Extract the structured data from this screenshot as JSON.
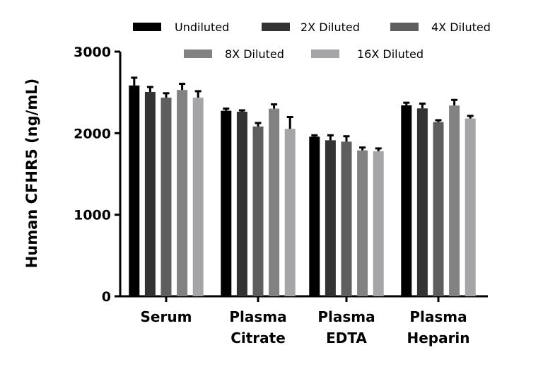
{
  "chart_data": {
    "type": "bar",
    "ylabel": "Human CFHR5 (ng/mL)",
    "xlabel": "",
    "ylim": [
      0,
      3000
    ],
    "yticks": [
      "0",
      "1000",
      "2000",
      "3000"
    ],
    "grid": false,
    "legend_position": "top",
    "categories": [
      [
        "Serum"
      ],
      [
        "Plasma",
        "Citrate"
      ],
      [
        "Plasma",
        "EDTA"
      ],
      [
        "Plasma",
        "Heparin"
      ]
    ],
    "series": [
      {
        "name": "Undiluted",
        "color": "#000000",
        "values": [
          2585,
          2275,
          1957,
          2342
        ],
        "errors": [
          95,
          26,
          17,
          32
        ]
      },
      {
        "name": "2X Diluted",
        "color": "#333333",
        "values": [
          2506,
          2263,
          1913,
          2304
        ],
        "errors": [
          60,
          17,
          61,
          58
        ]
      },
      {
        "name": "4X Diluted",
        "color": "#5e5e5e",
        "values": [
          2435,
          2082,
          1896,
          2136
        ],
        "errors": [
          55,
          43,
          66,
          23
        ]
      },
      {
        "name": "8X Diluted",
        "color": "#828282",
        "values": [
          2530,
          2301,
          1789,
          2339
        ],
        "errors": [
          75,
          52,
          35,
          69
        ]
      },
      {
        "name": "16X Diluted",
        "color": "#a5a5a7",
        "values": [
          2435,
          2053,
          1778,
          2180
        ],
        "errors": [
          80,
          145,
          35,
          32
        ]
      }
    ]
  }
}
